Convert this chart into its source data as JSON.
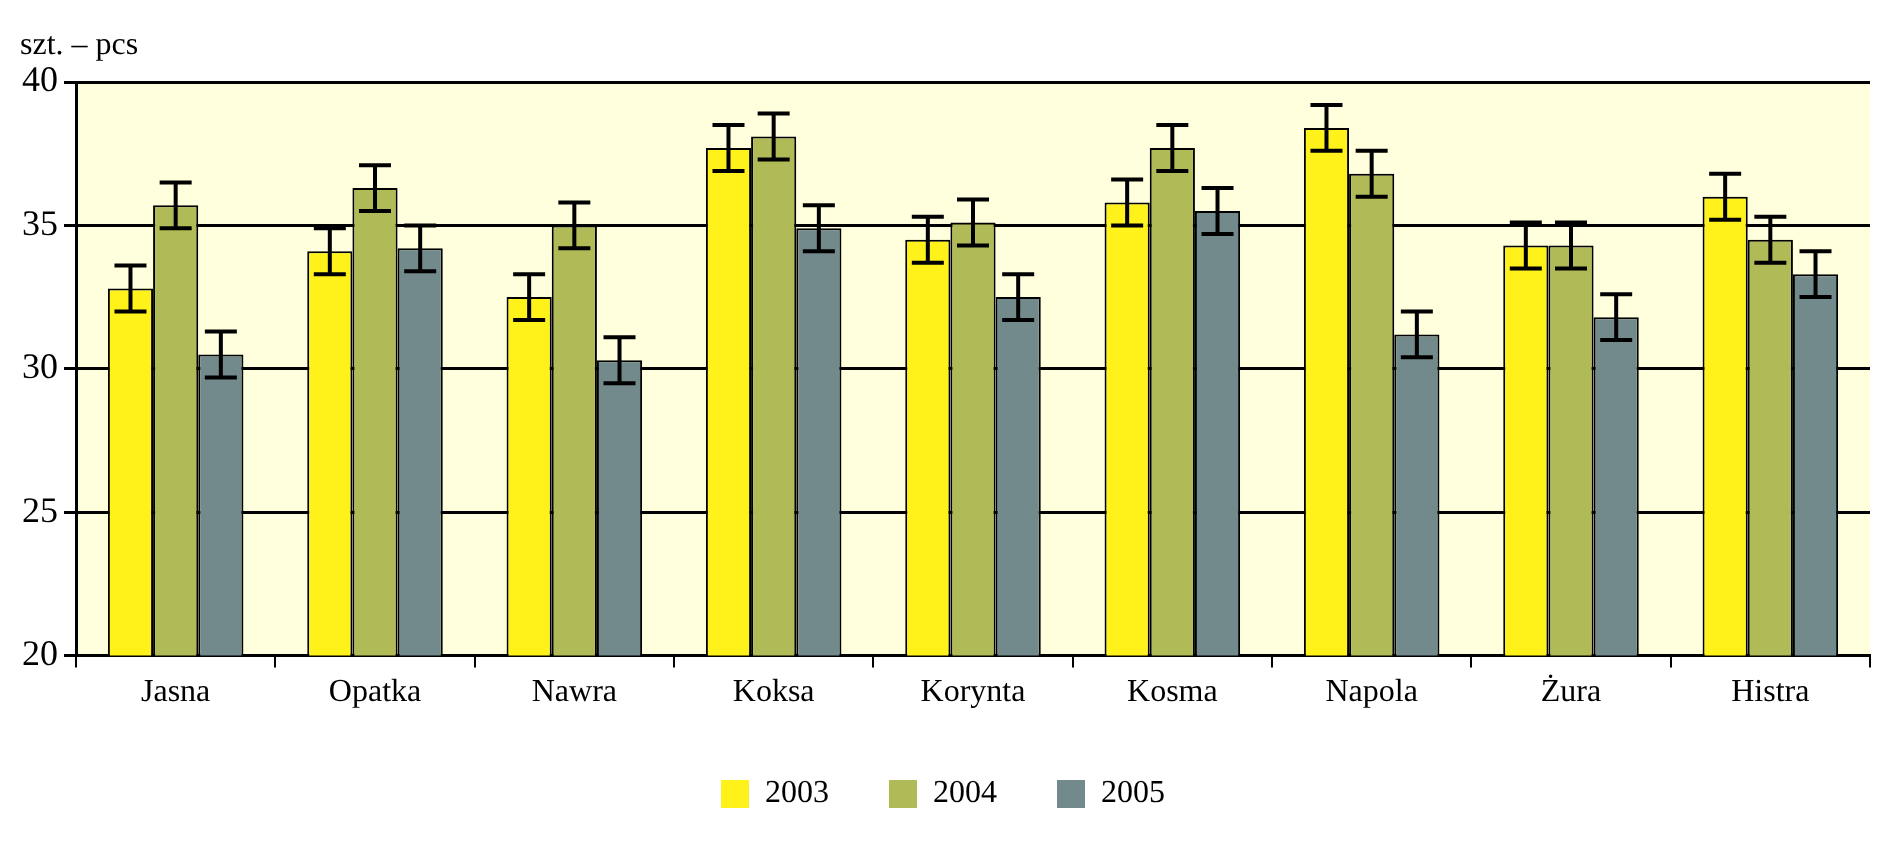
{
  "chart_data": {
    "type": "bar",
    "ylabel": "szt. – pcs",
    "categories": [
      "Jasna",
      "Opatka",
      "Nawra",
      "Koksa",
      "Korynta",
      "Kosma",
      "Napola",
      "Żura",
      "Histra"
    ],
    "series": [
      {
        "name": "2003",
        "color": "#fff21a",
        "values": [
          32.8,
          34.1,
          32.5,
          37.7,
          34.5,
          35.8,
          38.4,
          34.3,
          36.0
        ],
        "errors": [
          0.8,
          0.8,
          0.8,
          0.8,
          0.8,
          0.8,
          0.8,
          0.8,
          0.8
        ]
      },
      {
        "name": "2004",
        "color": "#b0bb58",
        "values": [
          35.7,
          36.3,
          35.0,
          38.1,
          35.1,
          37.7,
          36.8,
          34.3,
          34.5
        ],
        "errors": [
          0.8,
          0.8,
          0.8,
          0.8,
          0.8,
          0.8,
          0.8,
          0.8,
          0.8
        ]
      },
      {
        "name": "2005",
        "color": "#728a8c",
        "values": [
          30.5,
          34.2,
          30.3,
          34.9,
          32.5,
          35.5,
          31.2,
          31.8,
          33.3
        ],
        "errors": [
          0.8,
          0.8,
          0.8,
          0.8,
          0.8,
          0.8,
          0.8,
          0.8,
          0.8
        ]
      }
    ],
    "ylim": [
      20,
      40
    ],
    "yticks": [
      20,
      25,
      30,
      35,
      40
    ],
    "grid": "y",
    "legend": "bottom"
  }
}
